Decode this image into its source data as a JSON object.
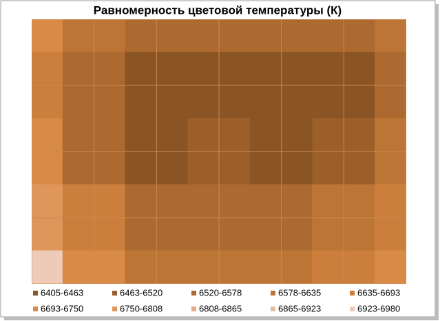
{
  "chart_data": {
    "type": "contour",
    "title": "Равномерность цветовой температуры (К)",
    "levels": [
      6405,
      6463,
      6520,
      6578,
      6635,
      6693,
      6750,
      6808,
      6865,
      6923,
      6980
    ],
    "series": [
      {
        "name": "6405-6463",
        "color": "#8a5424"
      },
      {
        "name": "6463-6520",
        "color": "#9c5f2a"
      },
      {
        "name": "6520-6578",
        "color": "#ad6a30"
      },
      {
        "name": "6578-6635",
        "color": "#bd7536"
      },
      {
        "name": "6635-6693",
        "color": "#cc7f3c"
      },
      {
        "name": "6693-6750",
        "color": "#d88a46"
      },
      {
        "name": "6750-6808",
        "color": "#e0955a"
      },
      {
        "name": "6808-6865",
        "color": "#e4aa8a"
      },
      {
        "name": "6865-6923",
        "color": "#e8bba3"
      },
      {
        "name": "6923-6980",
        "color": "#eecab8"
      }
    ],
    "z": [
      [
        6700,
        6600,
        6560,
        6540,
        6540,
        6560,
        6600
      ],
      [
        6650,
        6540,
        6430,
        6430,
        6430,
        6450,
        6560
      ],
      [
        6700,
        6560,
        6440,
        6470,
        6440,
        6500,
        6600
      ],
      [
        6800,
        6640,
        6560,
        6540,
        6560,
        6600,
        6680
      ],
      [
        6950,
        6720,
        6620,
        6580,
        6600,
        6640,
        6720
      ]
    ],
    "grid": true
  }
}
